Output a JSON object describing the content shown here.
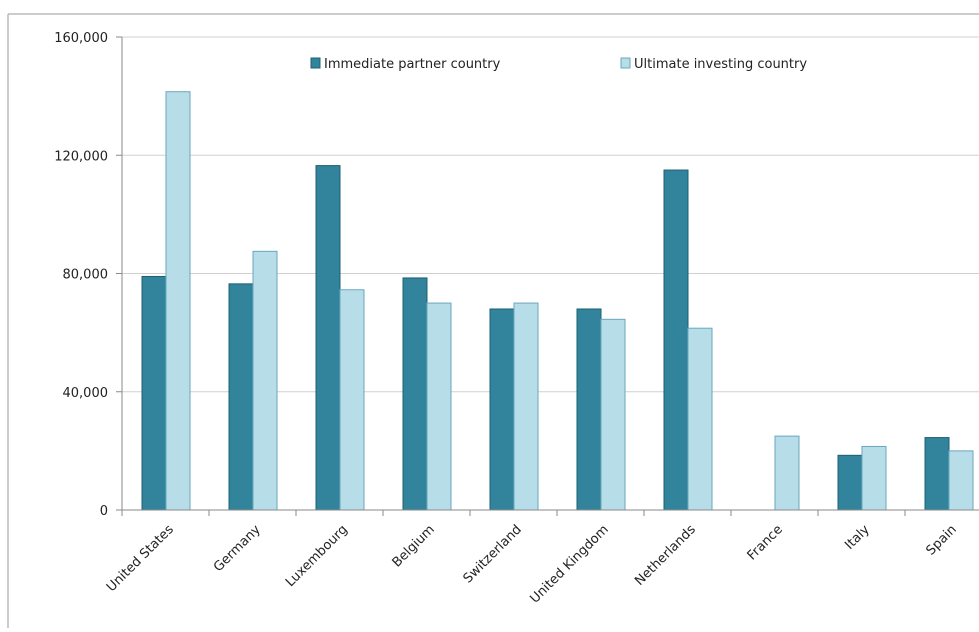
{
  "chart_data": {
    "type": "bar",
    "title": "",
    "xlabel": "",
    "ylabel": "",
    "categories": [
      "United States",
      "Germany",
      "Luxembourg",
      "Belgium",
      "Switzerland",
      "United Kingdom",
      "Netherlands",
      "France",
      "Italy",
      "Spain"
    ],
    "series": [
      {
        "name": "Immediate partner country",
        "color": "#31849b",
        "values": [
          79000,
          76500,
          116500,
          78500,
          68000,
          68000,
          115000,
          null,
          18500,
          24500
        ]
      },
      {
        "name": "Ultimate investing country",
        "color": "#b7dde8",
        "values": [
          141500,
          87500,
          74500,
          70000,
          70000,
          64500,
          61500,
          25000,
          21500,
          20000
        ]
      }
    ],
    "ylim": [
      0,
      160000
    ],
    "yticks": [
      0,
      40000,
      80000,
      120000,
      160000
    ],
    "ytick_labels": [
      "0",
      "40,000",
      "80,000",
      "120,000",
      "160,000"
    ],
    "grid": "horizontal",
    "legend_position": "top"
  }
}
